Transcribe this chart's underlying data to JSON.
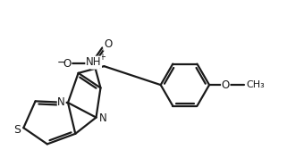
{
  "bg_color": "#ffffff",
  "line_color": "#1a1a1a",
  "line_width": 1.6,
  "font_size": 8.5,
  "fig_width": 3.21,
  "fig_height": 1.77,
  "dpi": 100,
  "xlim": [
    0,
    9.5
  ],
  "ylim": [
    0,
    5.3
  ]
}
